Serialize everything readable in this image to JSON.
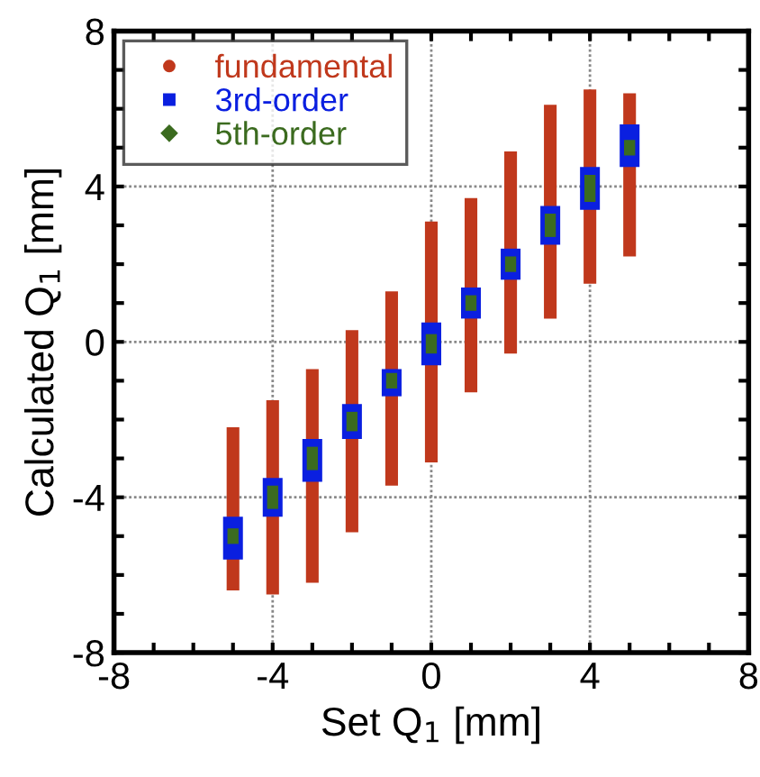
{
  "chart_data": {
    "type": "bar",
    "xlabel": "Set Q$_{1}$ [mm]",
    "ylabel": "Calculated Q$_{1}$ [mm]",
    "xlim": [
      -8,
      8
    ],
    "ylim": [
      -8,
      8
    ],
    "xticks": [
      -8,
      {
        "value": -7,
        "label": null
      },
      {
        "value": -6,
        "label": null
      },
      {
        "value": -5,
        "label": null
      },
      -4,
      {
        "value": -3,
        "label": null
      },
      {
        "value": -2,
        "label": null
      },
      {
        "value": -1,
        "label": null
      },
      0,
      {
        "value": 1,
        "label": null
      },
      {
        "value": 2,
        "label": null
      },
      {
        "value": 3,
        "label": null
      },
      4,
      {
        "value": 5,
        "label": null
      },
      {
        "value": 6,
        "label": null
      },
      {
        "value": 7,
        "label": null
      },
      8
    ],
    "yticks": [
      -8,
      {
        "value": -7,
        "label": null
      },
      {
        "value": -6,
        "label": null
      },
      {
        "value": -5,
        "label": null
      },
      -4,
      {
        "value": -3,
        "label": null
      },
      {
        "value": -2,
        "label": null
      },
      {
        "value": -1,
        "label": null
      },
      0,
      {
        "value": 1,
        "label": null
      },
      {
        "value": 2,
        "label": null
      },
      {
        "value": 3,
        "label": null
      },
      4,
      {
        "value": 5,
        "label": null
      },
      {
        "value": 6,
        "label": null
      },
      {
        "value": 7,
        "label": null
      },
      8
    ],
    "grid": true,
    "legend": "top left",
    "series": [
      {
        "name": "fundamental",
        "color": "#c0381c",
        "marker": "circle",
        "x": [
          -5,
          -4,
          -3,
          -2,
          -1,
          0,
          1,
          2,
          3,
          4,
          5
        ],
        "base": [
          -6.4,
          -6.5,
          -6.2,
          -4.9,
          -3.7,
          -3.1,
          -1.3,
          -0.3,
          0.6,
          1.5,
          2.2
        ],
        "values": [
          4.2,
          5.0,
          5.5,
          5.2,
          5.0,
          6.2,
          5.0,
          5.2,
          5.5,
          5.0,
          4.2
        ]
      },
      {
        "name": "3rd-order",
        "color": "#0a1fe0",
        "marker": "square",
        "x": [
          -5,
          -4,
          -3,
          -2,
          -1,
          0,
          1,
          2,
          3,
          4,
          5
        ],
        "base": [
          -5.6,
          -4.5,
          -3.6,
          -2.5,
          -1.4,
          -0.6,
          0.6,
          1.6,
          2.5,
          3.4,
          4.5
        ],
        "values": [
          1.1,
          1.0,
          1.1,
          0.9,
          0.7,
          1.1,
          0.8,
          0.8,
          1.0,
          1.1,
          1.1
        ]
      },
      {
        "name": "5th-order",
        "color": "#3b6b1f",
        "marker": "diamond",
        "x": [
          -5,
          -4,
          -3,
          -2,
          -1,
          0,
          1,
          2,
          3,
          4,
          5
        ],
        "base": [
          -5.2,
          -4.3,
          -3.3,
          -2.3,
          -1.2,
          -0.3,
          0.8,
          1.8,
          2.7,
          3.6,
          4.8
        ],
        "values": [
          0.4,
          0.6,
          0.6,
          0.5,
          0.4,
          0.5,
          0.4,
          0.4,
          0.6,
          0.7,
          0.4
        ]
      }
    ]
  }
}
